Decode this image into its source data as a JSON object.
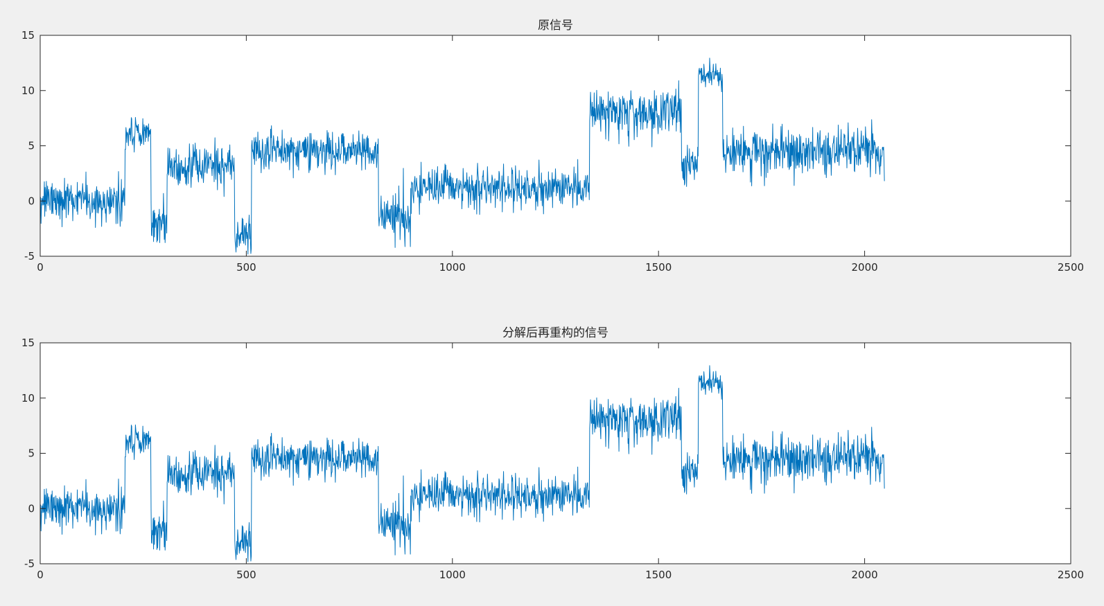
{
  "chart_data": [
    {
      "type": "line",
      "title": "原信号",
      "xlabel": "",
      "ylabel": "",
      "xlim": [
        0,
        2500
      ],
      "ylim": [
        -5,
        15
      ],
      "xticks": [
        0,
        500,
        1000,
        1500,
        2000,
        2500
      ],
      "yticks": [
        -5,
        0,
        5,
        10,
        15
      ],
      "grid": false,
      "color": "#0072bd",
      "series": [
        {
          "segments": [
            {
              "x": [
                1,
                205
              ],
              "level": 0,
              "noise": 0.9
            },
            {
              "x": [
                206,
                268
              ],
              "level": 6,
              "noise": 0.7
            },
            {
              "x": [
                269,
                307
              ],
              "level": -1.8,
              "noise": 1.0
            },
            {
              "x": [
                308,
                471
              ],
              "level": 3,
              "noise": 0.9
            },
            {
              "x": [
                472,
                512
              ],
              "level": -3,
              "noise": 0.8
            },
            {
              "x": [
                513,
                820
              ],
              "level": 4.5,
              "noise": 0.9
            },
            {
              "x": [
                821,
                900
              ],
              "level": -1.5,
              "noise": 1.1
            },
            {
              "x": [
                901,
                1332
              ],
              "level": 1.2,
              "noise": 0.9
            },
            {
              "x": [
                1333,
                1555
              ],
              "level": 8,
              "noise": 1.0
            },
            {
              "x": [
                1556,
                1596
              ],
              "level": 3,
              "noise": 0.9
            },
            {
              "x": [
                1597,
                1655
              ],
              "level": 11.5,
              "noise": 0.6
            },
            {
              "x": [
                1656,
                2048
              ],
              "level": 4.5,
              "noise": 1.0
            }
          ],
          "end_value": 1.8
        }
      ]
    },
    {
      "type": "line",
      "title": "分解后再重构的信号",
      "xlabel": "",
      "ylabel": "",
      "xlim": [
        0,
        2500
      ],
      "ylim": [
        -5,
        15
      ],
      "xticks": [
        0,
        500,
        1000,
        1500,
        2000,
        2500
      ],
      "yticks": [
        -5,
        0,
        5,
        10,
        15
      ],
      "grid": false,
      "color": "#0072bd",
      "series": [
        {
          "segments": [
            {
              "x": [
                1,
                205
              ],
              "level": 0,
              "noise": 0.9
            },
            {
              "x": [
                206,
                268
              ],
              "level": 6,
              "noise": 0.7
            },
            {
              "x": [
                269,
                307
              ],
              "level": -1.8,
              "noise": 1.0
            },
            {
              "x": [
                308,
                471
              ],
              "level": 3,
              "noise": 0.9
            },
            {
              "x": [
                472,
                512
              ],
              "level": -3,
              "noise": 0.8
            },
            {
              "x": [
                513,
                820
              ],
              "level": 4.5,
              "noise": 0.9
            },
            {
              "x": [
                821,
                900
              ],
              "level": -1.5,
              "noise": 1.1
            },
            {
              "x": [
                901,
                1332
              ],
              "level": 1.2,
              "noise": 0.9
            },
            {
              "x": [
                1333,
                1555
              ],
              "level": 8,
              "noise": 1.0
            },
            {
              "x": [
                1556,
                1596
              ],
              "level": 3,
              "noise": 0.9
            },
            {
              "x": [
                1597,
                1655
              ],
              "level": 11.5,
              "noise": 0.6
            },
            {
              "x": [
                1656,
                2048
              ],
              "level": 4.5,
              "noise": 1.0
            }
          ],
          "end_value": 1.8
        }
      ]
    }
  ]
}
